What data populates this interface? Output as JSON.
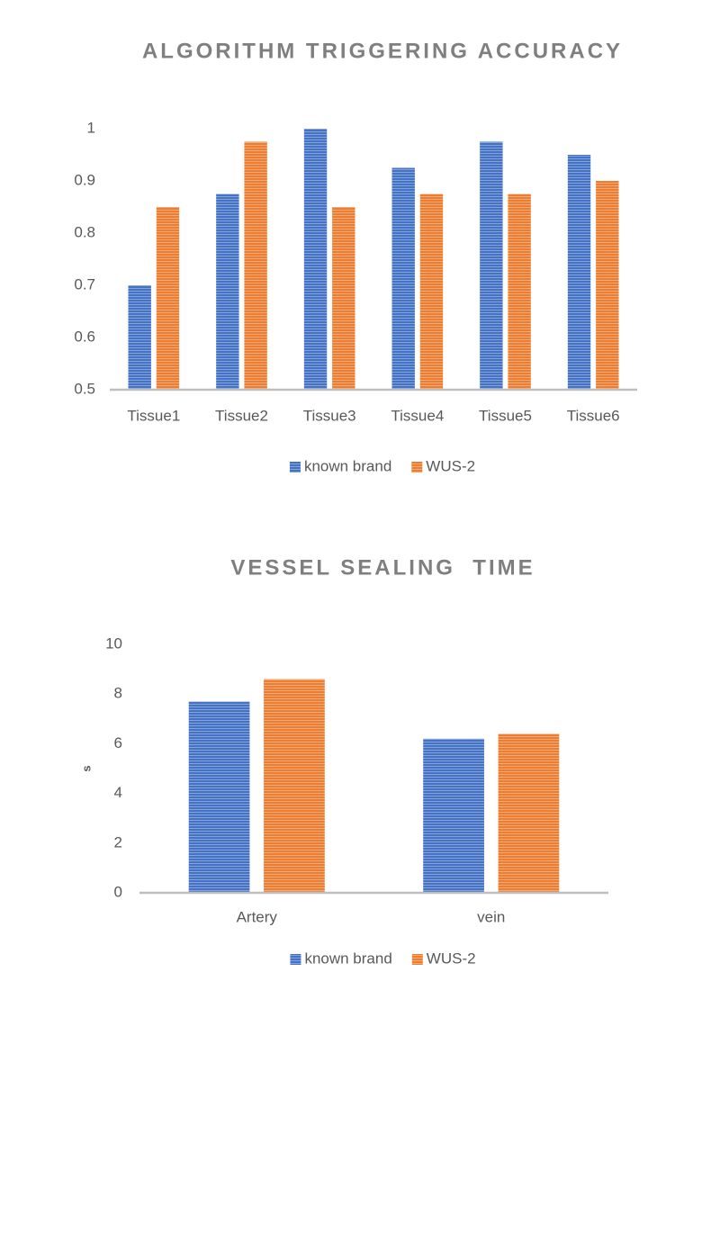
{
  "chart_data": [
    {
      "type": "bar",
      "title": "ALGORITHM TRIGGERING ACCURACY",
      "categories": [
        "Tissue1",
        "Tissue2",
        "Tissue3",
        "Tissue4",
        "Tissue5",
        "Tissue6"
      ],
      "series": [
        {
          "name": "known brand",
          "color": "#4472c4",
          "values": [
            0.7,
            0.875,
            1.0,
            0.925,
            0.975,
            0.95
          ]
        },
        {
          "name": "WUS-2",
          "color": "#ed7d31",
          "values": [
            0.85,
            0.975,
            0.85,
            0.875,
            0.875,
            0.9
          ]
        }
      ],
      "ylim": [
        0.5,
        1
      ],
      "yticks": [
        0.5,
        0.6,
        0.7,
        0.8,
        0.9,
        1
      ],
      "grid": false,
      "legend": "bottom"
    },
    {
      "type": "bar",
      "title": "VESSEL SEALING  TIME",
      "y_label": "s",
      "categories": [
        "Artery",
        "vein"
      ],
      "series": [
        {
          "name": "known brand",
          "color": "#4472c4",
          "values": [
            7.7,
            6.2
          ]
        },
        {
          "name": "WUS-2",
          "color": "#ed7d31",
          "values": [
            8.6,
            6.4
          ]
        }
      ],
      "ylim": [
        0,
        10
      ],
      "yticks": [
        0,
        2,
        4,
        6,
        8,
        10
      ],
      "grid": false,
      "legend": "bottom"
    }
  ]
}
